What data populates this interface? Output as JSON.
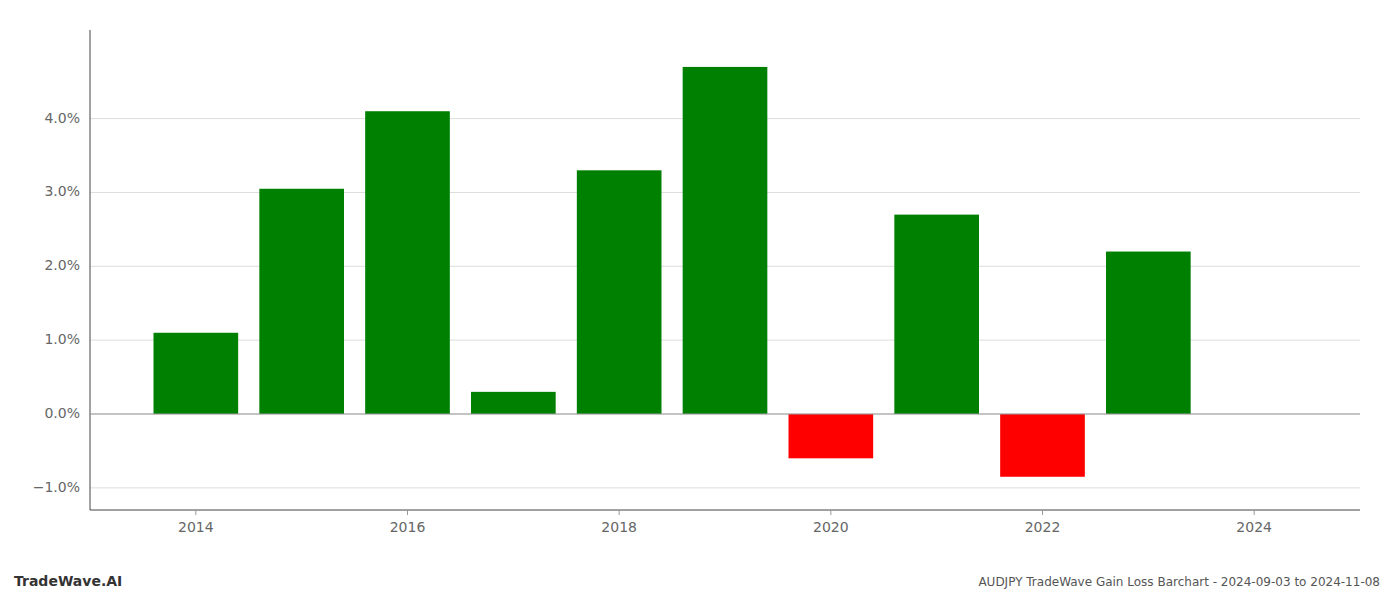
{
  "chart_data": {
    "type": "bar",
    "title": "AUDJPY TradeWave Gain Loss Barchart - 2024-09-03 to 2024-11-08",
    "annotations": [
      "TradeWave.AI"
    ],
    "x": [
      2014,
      2015,
      2016,
      2017,
      2018,
      2019,
      2020,
      2021,
      2022,
      2023
    ],
    "values": [
      0.011,
      0.0305,
      0.041,
      0.003,
      0.033,
      0.047,
      -0.006,
      0.027,
      -0.0085,
      0.022
    ],
    "colors": [
      "#008000",
      "#008000",
      "#008000",
      "#008000",
      "#008000",
      "#008000",
      "#ff0000",
      "#008000",
      "#ff0000",
      "#008000"
    ],
    "xlim": [
      2013.0,
      2025.0
    ],
    "ylim": [
      -0.013,
      0.052
    ],
    "xticks": [
      2014,
      2016,
      2018,
      2020,
      2022,
      2024
    ],
    "yticks": [
      {
        "value": -0.01,
        "label": "−1.0%"
      },
      {
        "value": 0.0,
        "label": "0.0%"
      },
      {
        "value": 0.01,
        "label": "1.0%"
      },
      {
        "value": 0.02,
        "label": "2.0%"
      },
      {
        "value": 0.03,
        "label": "3.0%"
      },
      {
        "value": 0.04,
        "label": "4.0%"
      }
    ],
    "grid": true
  }
}
